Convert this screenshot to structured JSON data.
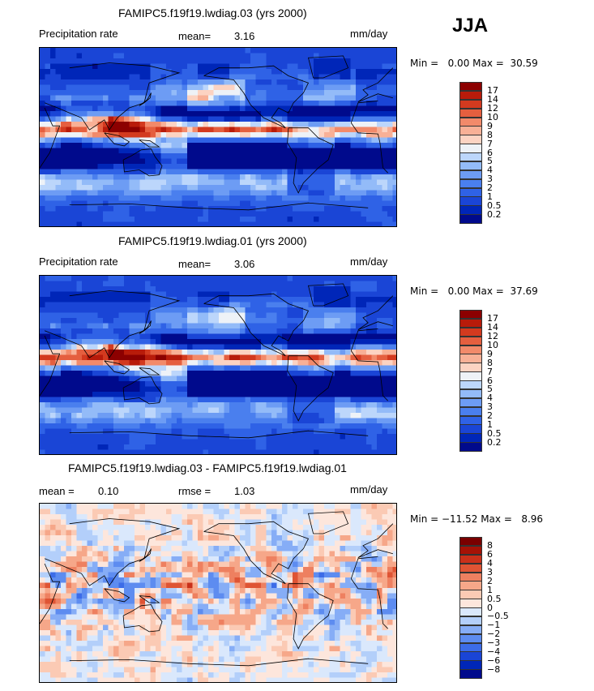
{
  "season": "JJA",
  "panels": [
    {
      "title": "FAMIPC5.f19f19.lwdiag.03 (yrs 2000)",
      "left_label": "Precipitation rate",
      "stat1_label": "mean=",
      "stat1_value": "3.16",
      "units": "mm/day",
      "minmax": "Min =   0.00 Max =  30.59",
      "colorbar": [
        "0.2",
        "0.5",
        "1",
        "2",
        "3",
        "4",
        "5",
        "6",
        "7",
        "8",
        "9",
        "10",
        "12",
        "14",
        "17"
      ]
    },
    {
      "title": "FAMIPC5.f19f19.lwdiag.01 (yrs 2000)",
      "left_label": "Precipitation rate",
      "stat1_label": "mean=",
      "stat1_value": "3.06",
      "units": "mm/day",
      "minmax": "Min =   0.00 Max =  37.69",
      "colorbar": [
        "0.2",
        "0.5",
        "1",
        "2",
        "3",
        "4",
        "5",
        "6",
        "7",
        "8",
        "9",
        "10",
        "12",
        "14",
        "17"
      ]
    },
    {
      "title": "FAMIPC5.f19f19.lwdiag.03 - FAMIPC5.f19f19.lwdiag.01",
      "stat1_label": "mean =",
      "stat1_value": "0.10",
      "stat2_label": "rmse =",
      "stat2_value": "1.03",
      "units": "mm/day",
      "minmax": "Min = −11.52 Max =   8.96",
      "colorbar": [
        "−8",
        "−6",
        "−4",
        "−3",
        "−2",
        "−1",
        "−0.5",
        "0",
        "0.5",
        "1",
        "2",
        "3",
        "4",
        "6",
        "8"
      ]
    }
  ],
  "colors": {
    "precip": [
      "#000a8c",
      "#0026b8",
      "#1a45d6",
      "#2f62e6",
      "#4a7fee",
      "#6d9cf4",
      "#93bbf8",
      "#bcd6fb",
      "#eef2f7",
      "#fcd3c2",
      "#f8b096",
      "#f28a6a",
      "#e55f3f",
      "#d33a1f",
      "#b81b0a",
      "#8c0000"
    ],
    "diff": [
      "#000a8c",
      "#0026b8",
      "#1a45d6",
      "#3c6ce8",
      "#5d8cf0",
      "#86adf6",
      "#b3cffa",
      "#dae8fc",
      "#fde6dc",
      "#fbcab4",
      "#f6a789",
      "#ee8060",
      "#df5434",
      "#c9301a",
      "#a51206",
      "#7a0000"
    ]
  },
  "chart_data": [
    {
      "type": "heatmap",
      "title": "FAMIPC5.f19f19.lwdiag.03 (yrs 2000)",
      "variable": "Precipitation rate",
      "units": "mm/day",
      "mean": 3.16,
      "min": 0.0,
      "max": 30.59,
      "levels": [
        0.2,
        0.5,
        1,
        2,
        3,
        4,
        5,
        6,
        7,
        8,
        9,
        10,
        12,
        14,
        17
      ]
    },
    {
      "type": "heatmap",
      "title": "FAMIPC5.f19f19.lwdiag.01 (yrs 2000)",
      "variable": "Precipitation rate",
      "units": "mm/day",
      "mean": 3.06,
      "min": 0.0,
      "max": 37.69,
      "levels": [
        0.2,
        0.5,
        1,
        2,
        3,
        4,
        5,
        6,
        7,
        8,
        9,
        10,
        12,
        14,
        17
      ]
    },
    {
      "type": "heatmap",
      "title": "FAMIPC5.f19f19.lwdiag.03 - FAMIPC5.f19f19.lwdiag.01",
      "units": "mm/day",
      "mean": 0.1,
      "rmse": 1.03,
      "min": -11.52,
      "max": 8.96,
      "levels": [
        -8,
        -6,
        -4,
        -3,
        -2,
        -1,
        -0.5,
        0,
        0.5,
        1,
        2,
        3,
        4,
        6,
        8
      ]
    }
  ]
}
